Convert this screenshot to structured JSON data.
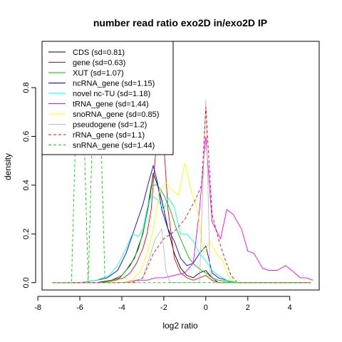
{
  "chart_data": {
    "type": "line",
    "title": "number read ratio exo2D in/exo2D IP",
    "xlabel": "log2 ratio",
    "ylabel": "density",
    "xlim": [
      -7.8,
      5.4
    ],
    "ylim": [
      -0.03,
      0.99
    ],
    "xticks": [
      -8,
      -6,
      -4,
      -2,
      0,
      2,
      4
    ],
    "yticks": [
      0.0,
      0.2,
      0.4,
      0.6,
      0.8
    ],
    "legend_position": "top-left",
    "series": [
      {
        "name": "CDS (sd=0.81)",
        "color": "#000000",
        "dash": "solid",
        "x": [
          -7.3,
          -6.6,
          -5.9,
          -5.2,
          -4.5,
          -4.1,
          -3.8,
          -3.4,
          -3.0,
          -2.7,
          -2.5,
          -2.3,
          -2.1,
          -1.8,
          -1.5,
          -1.2,
          -0.9,
          -0.6,
          -0.3,
          0.0,
          0.3,
          0.6,
          1.0,
          1.4,
          2.0,
          3.0,
          4.0,
          5.0
        ],
        "y": [
          0,
          0,
          0,
          0,
          0.01,
          0.02,
          0.05,
          0.1,
          0.2,
          0.33,
          0.45,
          0.4,
          0.34,
          0.22,
          0.12,
          0.06,
          0.03,
          0.02,
          0.04,
          0.05,
          0.02,
          0,
          0,
          0,
          0,
          0,
          0,
          0
        ]
      },
      {
        "name": "gene (sd=0.63)",
        "color": "#ff0000",
        "dash": "solid",
        "x": [
          -7.3,
          -6.0,
          -5.0,
          -4.3,
          -3.9,
          -3.6,
          -3.3,
          -3.0,
          -2.8,
          -2.6,
          -2.4,
          -2.2,
          -2.0,
          -1.8,
          -1.5,
          -1.2,
          -0.9,
          -0.6,
          -0.3,
          0.0,
          0.3,
          0.6,
          1.0,
          2.0,
          3.0,
          4.0,
          5.0
        ],
        "y": [
          0,
          0,
          0,
          0.01,
          0.02,
          0.04,
          0.08,
          0.14,
          0.2,
          0.3,
          0.52,
          0.62,
          0.57,
          0.3,
          0.1,
          0.04,
          0.02,
          0.01,
          0.02,
          0.03,
          0.01,
          0,
          0,
          0,
          0,
          0,
          0
        ]
      },
      {
        "name": "XUT (sd=1.07)",
        "color": "#00bb00",
        "dash": "solid",
        "x": [
          -7.3,
          -6.0,
          -5.0,
          -4.5,
          -4.0,
          -3.6,
          -3.2,
          -2.9,
          -2.6,
          -2.3,
          -2.0,
          -1.7,
          -1.4,
          -1.1,
          -0.8,
          -0.5,
          -0.2,
          0.0,
          0.3,
          0.6,
          1.0,
          1.5,
          2.0,
          3.0,
          4.0,
          5.0
        ],
        "y": [
          0,
          0,
          0,
          0.01,
          0.03,
          0.07,
          0.14,
          0.24,
          0.4,
          0.4,
          0.36,
          0.3,
          0.22,
          0.16,
          0.1,
          0.07,
          0.05,
          0.04,
          0.02,
          0.01,
          0.005,
          0,
          0,
          0,
          0,
          0
        ]
      },
      {
        "name": "ncRNA_gene (sd=1.15)",
        "color": "#0000ff",
        "dash": "solid",
        "x": [
          -7.3,
          -6.0,
          -5.2,
          -4.7,
          -4.2,
          -3.8,
          -3.4,
          -3.0,
          -2.7,
          -2.5,
          -2.3,
          -2.1,
          -1.8,
          -1.5,
          -1.2,
          -0.9,
          -0.6,
          -0.3,
          0.0,
          0.3,
          0.6,
          1.0,
          1.5,
          2.0,
          3.0,
          4.0,
          5.0
        ],
        "y": [
          0,
          0,
          0.01,
          0.02,
          0.05,
          0.12,
          0.22,
          0.32,
          0.42,
          0.48,
          0.41,
          0.3,
          0.22,
          0.17,
          0.1,
          0.07,
          0.08,
          0.12,
          0.15,
          0.04,
          0.02,
          0.01,
          0,
          0,
          0,
          0,
          0
        ]
      },
      {
        "name": "novel nc-TU (sd=1.18)",
        "color": "#00ffff",
        "dash": "solid",
        "x": [
          -7.3,
          -6.0,
          -5.2,
          -4.6,
          -4.2,
          -3.8,
          -3.5,
          -3.2,
          -3.0,
          -2.8,
          -2.6,
          -2.3,
          -2.0,
          -1.8,
          -1.5,
          -1.2,
          -0.9,
          -0.6,
          -0.3,
          0.0,
          0.3,
          0.6,
          1.0,
          1.5,
          2.0,
          3.0,
          4.0,
          5.0
        ],
        "y": [
          0,
          0,
          0.01,
          0.03,
          0.07,
          0.14,
          0.2,
          0.19,
          0.22,
          0.3,
          0.36,
          0.34,
          0.3,
          0.35,
          0.31,
          0.2,
          0.2,
          0.17,
          0.12,
          0.09,
          0.05,
          0.03,
          0.01,
          0,
          0,
          0,
          0,
          0
        ]
      },
      {
        "name": "tRNA_gene (sd=1.44)",
        "color": "#ff00ff",
        "dash": "solid",
        "x": [
          -7.3,
          -5.0,
          -4.0,
          -3.3,
          -2.8,
          -2.4,
          -2.0,
          -1.5,
          -1.0,
          -0.6,
          -0.3,
          0.0,
          0.3,
          0.7,
          1.0,
          1.3,
          1.7,
          2.0,
          2.3,
          2.7,
          3.0,
          3.4,
          3.8,
          4.1,
          4.5,
          4.8,
          5.1
        ],
        "y": [
          0,
          0,
          0,
          0.01,
          0.01,
          0.02,
          0.02,
          0.03,
          0.04,
          0.08,
          0.3,
          0.6,
          0.25,
          0.18,
          0.3,
          0.28,
          0.22,
          0.13,
          0.12,
          0.06,
          0.05,
          0.05,
          0.07,
          0.05,
          0.02,
          0.02,
          0.01
        ]
      },
      {
        "name": "snoRNA_gene (sd=0.85)",
        "color": "#ffff00",
        "dash": "solid",
        "x": [
          -7.3,
          -5.0,
          -4.0,
          -3.5,
          -3.1,
          -2.8,
          -2.5,
          -2.2,
          -1.9,
          -1.6,
          -1.3,
          -1.0,
          -0.7,
          -0.4,
          -0.1,
          0.2,
          0.5,
          0.8,
          1.1,
          1.5,
          2.0,
          3.0,
          4.0,
          5.0
        ],
        "y": [
          0,
          0,
          0,
          0.01,
          0.05,
          0.12,
          0.22,
          0.38,
          0.41,
          0.38,
          0.36,
          0.49,
          0.38,
          0.3,
          0.12,
          0.17,
          0.12,
          0.09,
          0.02,
          0,
          0,
          0,
          0,
          0
        ]
      },
      {
        "name": "pseudogene (sd=1.2)",
        "color": "#bbbbbb",
        "dash": "solid",
        "x": [
          -7.3,
          -4.0,
          -3.3,
          -3.0,
          -2.7,
          -2.4,
          -2.1,
          -1.9,
          -1.7,
          -1.5,
          -1.2,
          -0.9,
          -0.6,
          -0.3,
          0.0,
          0.2,
          0.5,
          1.0,
          2.0,
          3.0,
          4.0,
          5.0
        ],
        "y": [
          0,
          0,
          0,
          0.02,
          0.1,
          0.18,
          0.22,
          0.05,
          0,
          0,
          0,
          0,
          0,
          0,
          0.75,
          0.04,
          0,
          0,
          0,
          0,
          0,
          0
        ]
      },
      {
        "name": "rRNA_gene (sd=1.1)",
        "color": "#ff0000",
        "dash": "dashed",
        "x": [
          -7.3,
          -5.0,
          -4.0,
          -3.5,
          -3.0,
          -2.5,
          -2.0,
          -1.5,
          -1.0,
          -0.5,
          -0.2,
          0.0,
          0.3,
          0.6,
          0.9,
          1.2,
          1.5,
          2.0,
          3.0,
          4.0,
          5.0
        ],
        "y": [
          0,
          0,
          0,
          0,
          0.02,
          0.12,
          0.18,
          0.21,
          0.26,
          0.34,
          0.4,
          0.72,
          0.28,
          0.18,
          0.1,
          0.03,
          0,
          0,
          0,
          0,
          0
        ]
      },
      {
        "name": "snRNA_gene (sd=1.44)",
        "color": "#00dd00",
        "dash": "dashed",
        "x": [
          -7.3,
          -6.7,
          -6.4,
          -6.2,
          -6.0,
          -5.8,
          -5.6,
          -5.4,
          -5.2,
          -5.0,
          -4.8,
          -4.6,
          -4.0,
          -3.0,
          -2.0,
          -1.0,
          0.0,
          1.0,
          2.0,
          3.0,
          4.0,
          5.0
        ],
        "y": [
          0,
          0,
          0,
          0.62,
          0.62,
          0.62,
          0,
          0.62,
          0.62,
          0.62,
          0,
          0,
          0,
          0,
          0,
          0,
          0,
          0,
          0,
          0,
          0,
          0
        ]
      }
    ]
  }
}
